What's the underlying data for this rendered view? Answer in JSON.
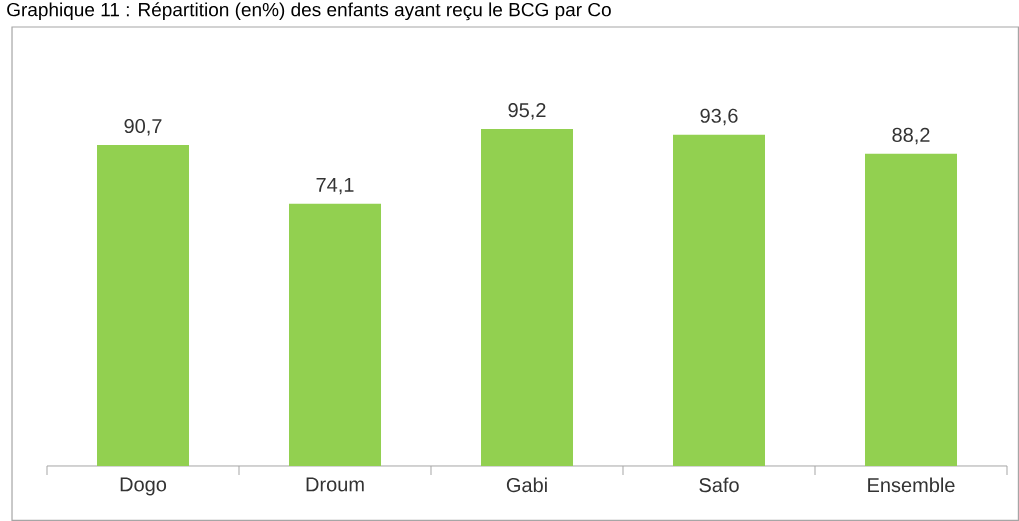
{
  "chart_data": {
    "type": "bar",
    "title": "Graphique 11 : Répartition (en%) des enfants ayant reçu le BCG par Co",
    "categories": [
      "Dogo",
      "Droum",
      "Gabi",
      "Safo",
      "Ensemble"
    ],
    "values": [
      90.7,
      74.1,
      95.2,
      93.6,
      88.2
    ],
    "value_labels": [
      "90,7",
      "74,1",
      "95,2",
      "93,6",
      "88,2"
    ],
    "color": "#92d050"
  }
}
